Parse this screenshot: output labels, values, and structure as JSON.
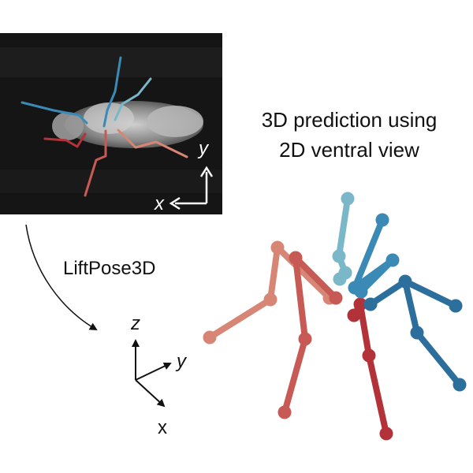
{
  "photo_axes": {
    "y_label": "y",
    "x_label": "x"
  },
  "prediction_title": {
    "line1": "3D prediction using",
    "line2": "2D ventral view"
  },
  "method_label": "LiftPose3D",
  "axes_3d": {
    "z_label": "z",
    "y_label": "y",
    "x_label": "x"
  },
  "colors": {
    "dark_red": "#b3323a",
    "mid_red": "#c85a55",
    "light_red": "#d78676",
    "light_blue": "#7ab8c9",
    "mid_blue": "#3a8ab5",
    "dark_blue": "#2d6f9c",
    "photo_bg": "#141414"
  }
}
